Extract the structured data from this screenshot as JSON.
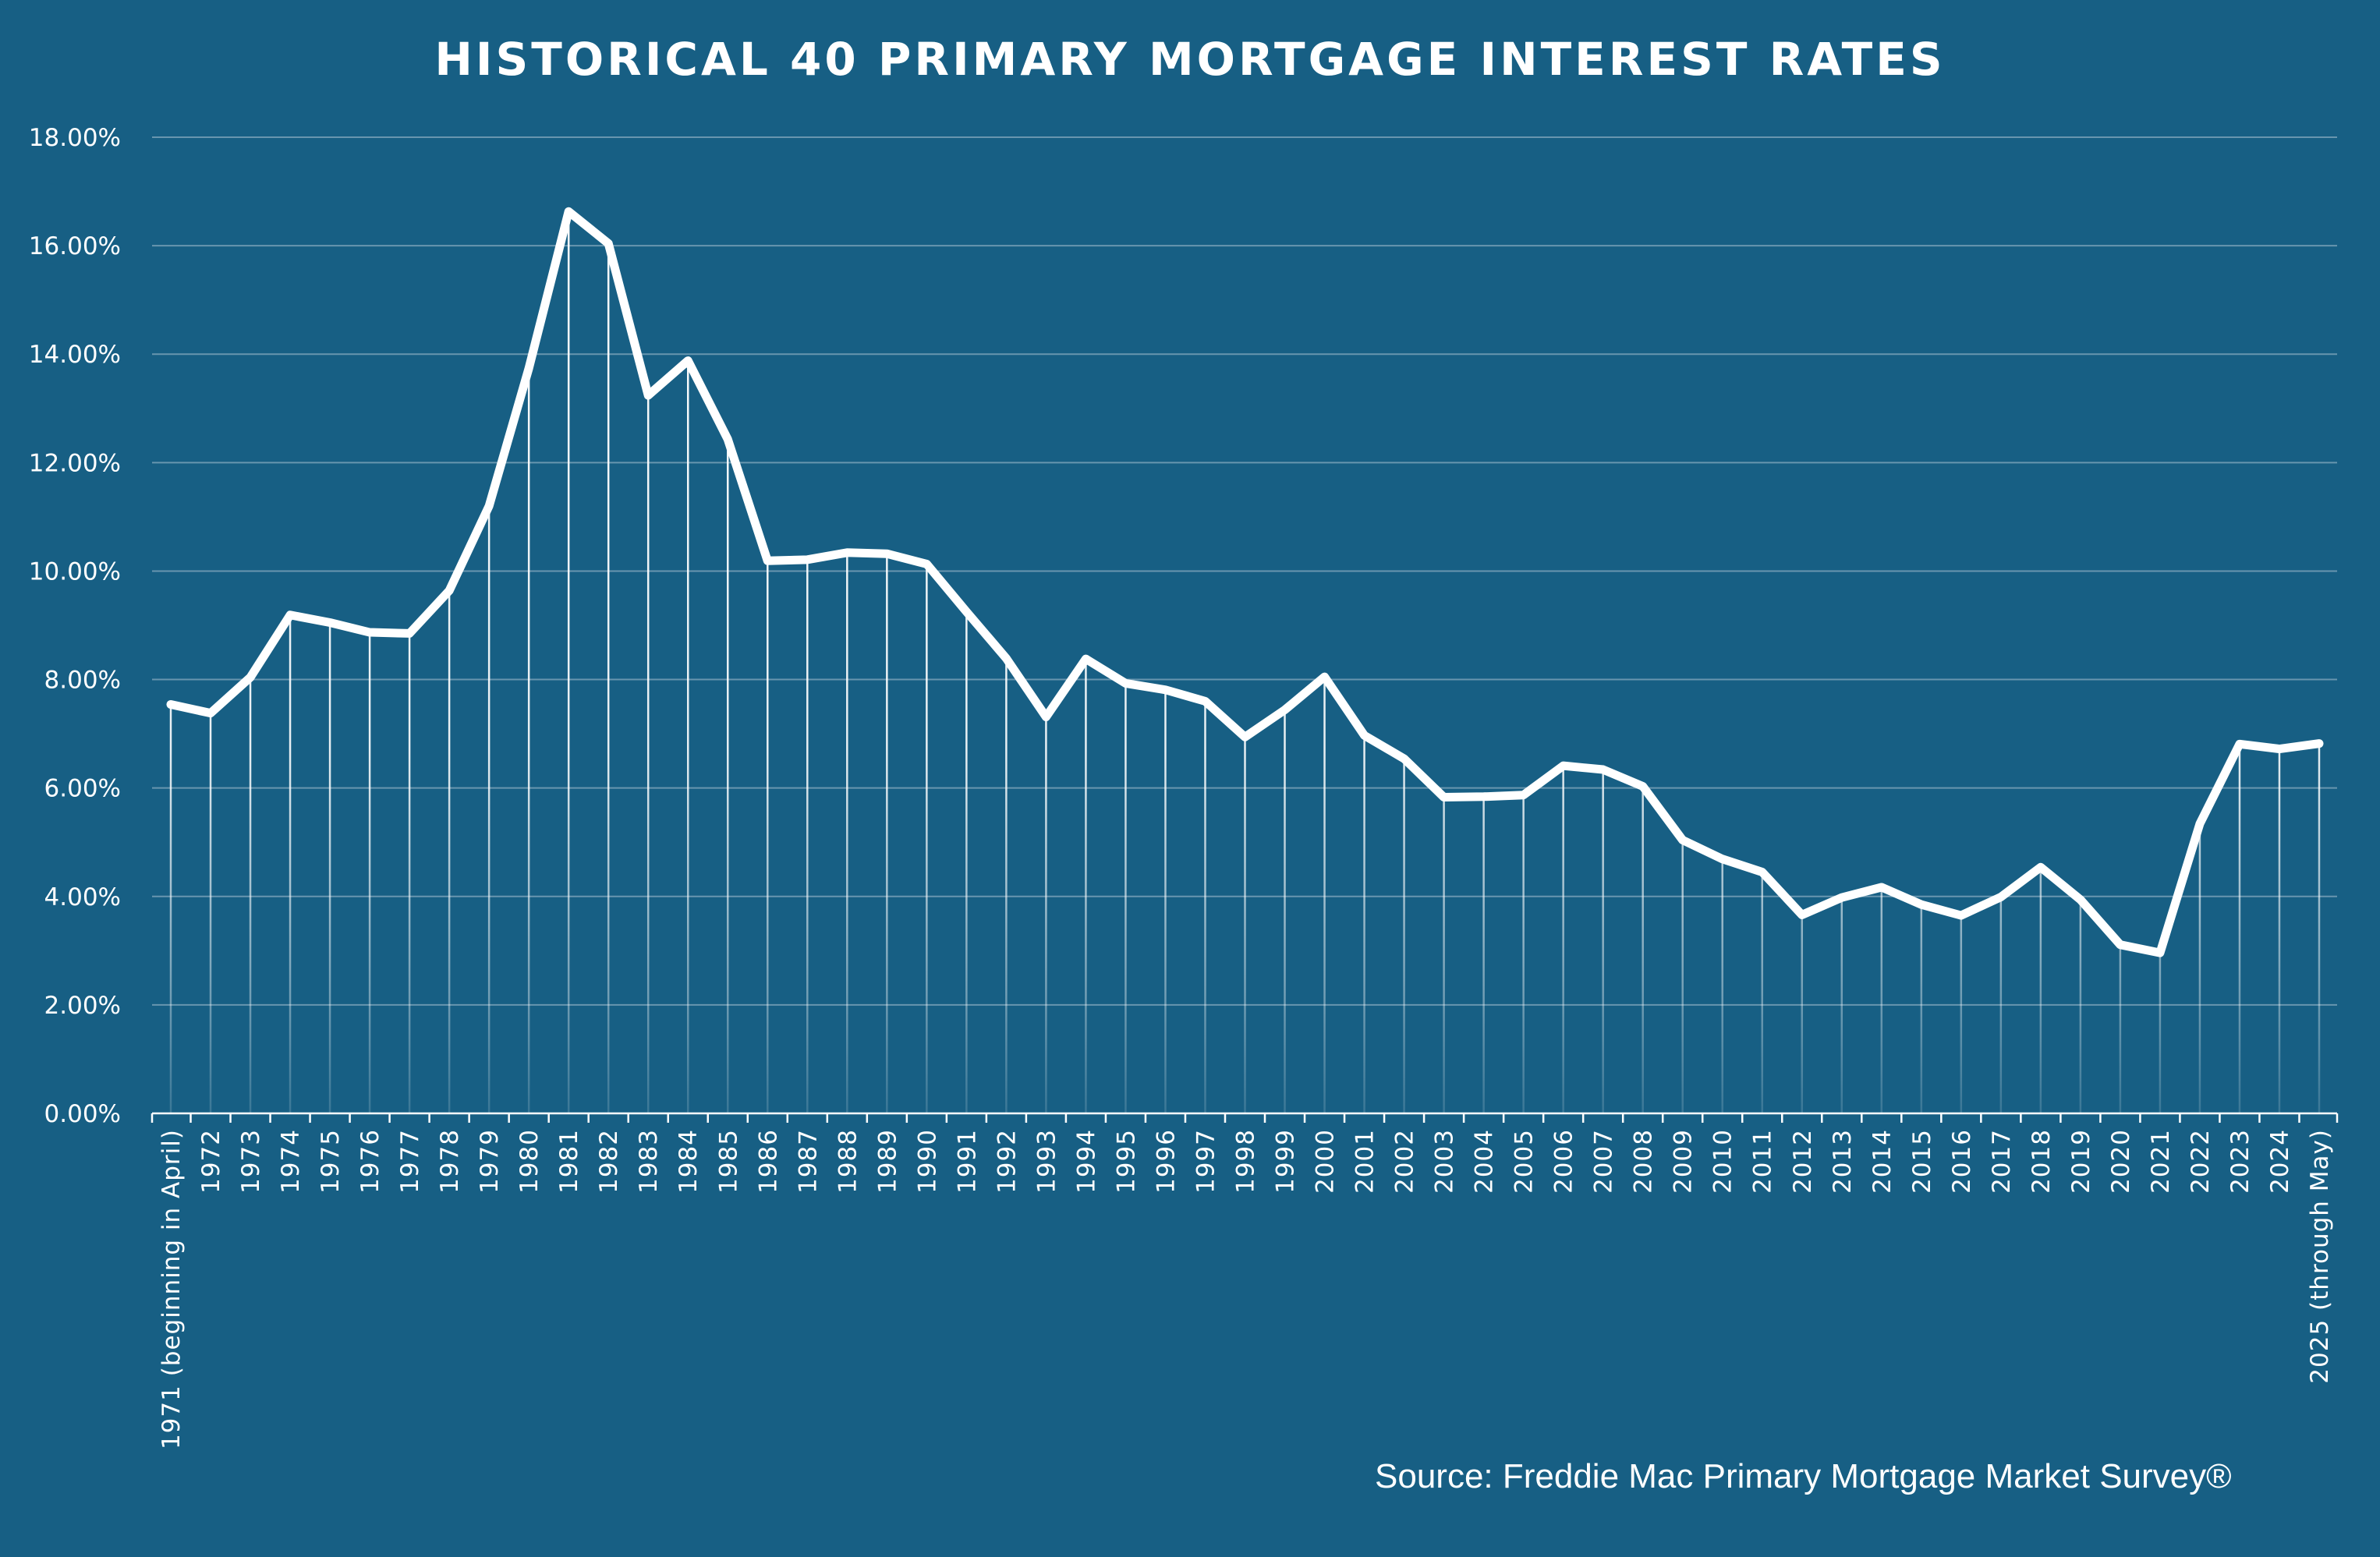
{
  "chart_data": {
    "type": "line",
    "title": "HISTORICAL 40 PRIMARY MORTGAGE INTEREST RATES",
    "source": "Source: Freddie Mac Primary Mortgage Market Survey®",
    "colors": {
      "background": "#175f84",
      "line": "#ffffff"
    },
    "ylim": [
      0,
      18
    ],
    "yticks": [
      0,
      2,
      4,
      6,
      8,
      10,
      12,
      14,
      16,
      18
    ],
    "ytick_labels": [
      "0.00%",
      "2.00%",
      "4.00%",
      "6.00%",
      "8.00%",
      "10.00%",
      "12.00%",
      "14.00%",
      "16.00%",
      "18.00%"
    ],
    "grid": true,
    "categories": [
      "1971 (beginning in April)",
      "1972",
      "1973",
      "1974",
      "1975",
      "1976",
      "1977",
      "1978",
      "1979",
      "1980",
      "1981",
      "1982",
      "1983",
      "1984",
      "1985",
      "1986",
      "1987",
      "1988",
      "1989",
      "1990",
      "1991",
      "1992",
      "1993",
      "1994",
      "1995",
      "1996",
      "1997",
      "1998",
      "1999",
      "2000",
      "2001",
      "2002",
      "2003",
      "2004",
      "2005",
      "2006",
      "2007",
      "2008",
      "2009",
      "2010",
      "2011",
      "2012",
      "2013",
      "2014",
      "2015",
      "2016",
      "2017",
      "2018",
      "2019",
      "2020",
      "2021",
      "2022",
      "2023",
      "2024",
      "2025 (through May)"
    ],
    "series": [
      {
        "values": [
          7.54,
          7.38,
          8.04,
          9.19,
          9.05,
          8.87,
          8.85,
          9.64,
          11.2,
          13.74,
          16.63,
          16.04,
          13.24,
          13.88,
          12.43,
          10.19,
          10.21,
          10.34,
          10.32,
          10.13,
          9.25,
          8.39,
          7.31,
          8.38,
          7.93,
          7.81,
          7.6,
          6.94,
          7.44,
          8.05,
          6.97,
          6.54,
          5.83,
          5.84,
          5.87,
          6.41,
          6.34,
          6.03,
          5.04,
          4.69,
          4.45,
          3.66,
          3.98,
          4.17,
          3.85,
          3.65,
          3.99,
          4.54,
          3.94,
          3.11,
          2.96,
          5.34,
          6.81,
          6.72,
          6.82
        ]
      }
    ]
  }
}
